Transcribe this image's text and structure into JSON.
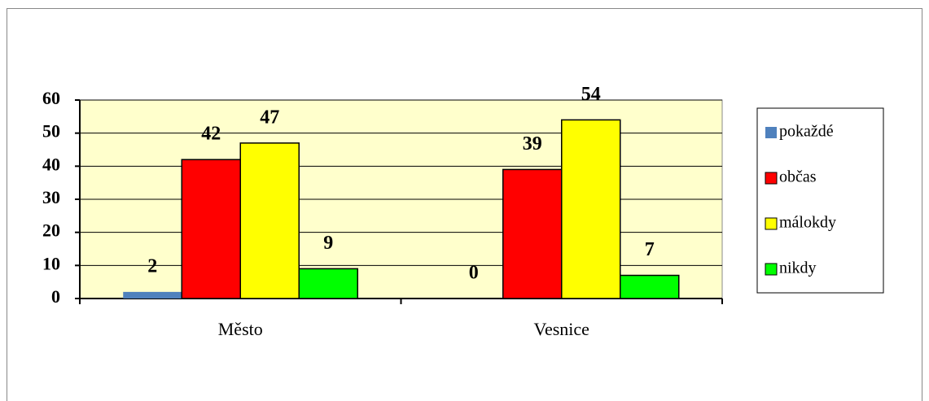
{
  "chart_data": {
    "type": "bar",
    "categories": [
      "Město",
      "Vesnice"
    ],
    "series": [
      {
        "name": "pokaždé",
        "color": "#4f81bd",
        "values": [
          2,
          0
        ]
      },
      {
        "name": "občas",
        "color": "#ff0000",
        "values": [
          42,
          39
        ]
      },
      {
        "name": "málokdy",
        "color": "#ffff00",
        "values": [
          47,
          54
        ]
      },
      {
        "name": "nikdy",
        "color": "#00ff00",
        "values": [
          9,
          7
        ]
      }
    ],
    "ylim": [
      0,
      60
    ],
    "yticks": [
      0,
      10,
      20,
      30,
      40,
      50,
      60
    ],
    "grid": true,
    "legend": "right",
    "plot_background": "#ffffcc"
  }
}
